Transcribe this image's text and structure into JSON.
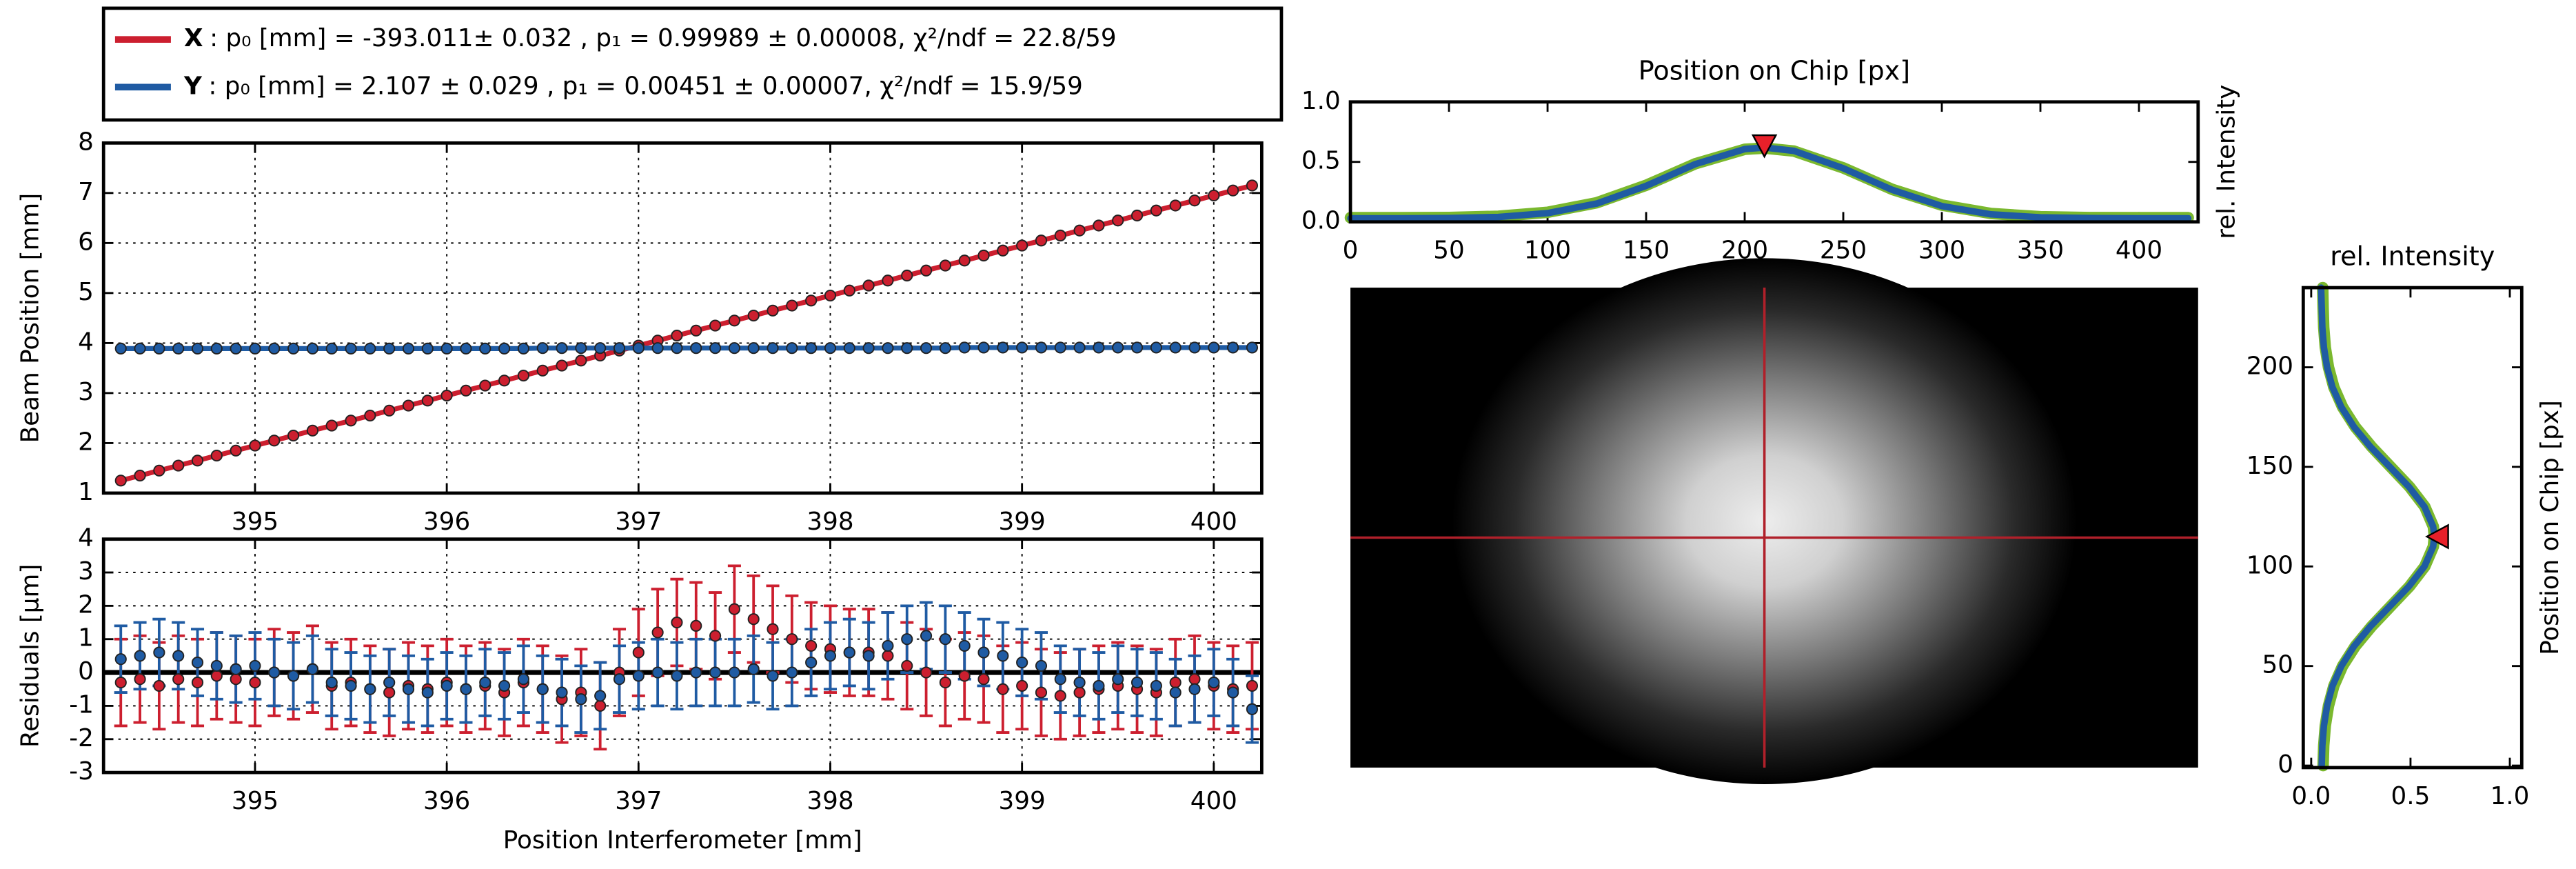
{
  "chart_data": [
    {
      "type": "line",
      "ylabel": "Beam Position [mm]",
      "x": [
        394.3,
        394.4,
        394.5,
        394.6,
        394.7,
        394.8,
        394.9,
        395.0,
        395.1,
        395.2,
        395.3,
        395.4,
        395.5,
        395.6,
        395.7,
        395.8,
        395.9,
        396.0,
        396.1,
        396.2,
        396.3,
        396.4,
        396.5,
        396.6,
        396.7,
        396.8,
        396.9,
        397.0,
        397.1,
        397.2,
        397.3,
        397.4,
        397.5,
        397.6,
        397.7,
        397.8,
        397.9,
        398.0,
        398.1,
        398.2,
        398.3,
        398.4,
        398.5,
        398.6,
        398.7,
        398.8,
        398.9,
        399.0,
        399.1,
        399.2,
        399.3,
        399.4,
        399.5,
        399.6,
        399.7,
        399.8,
        399.9,
        400.0,
        400.1,
        400.2
      ],
      "series": [
        {
          "name": "X",
          "label": ": p₀ [mm] = -393.011± 0.032 , p₁ = 0.99989 ± 0.00008, χ²/ndf = 22.8/59",
          "color": "#cc1f2f",
          "values": [
            1.25,
            1.35,
            1.45,
            1.55,
            1.65,
            1.75,
            1.85,
            1.95,
            2.05,
            2.15,
            2.25,
            2.35,
            2.45,
            2.55,
            2.65,
            2.75,
            2.85,
            2.95,
            3.05,
            3.15,
            3.25,
            3.35,
            3.45,
            3.55,
            3.65,
            3.75,
            3.85,
            3.95,
            4.05,
            4.15,
            4.25,
            4.35,
            4.45,
            4.55,
            4.65,
            4.75,
            4.85,
            4.95,
            5.05,
            5.15,
            5.25,
            5.35,
            5.45,
            5.55,
            5.65,
            5.75,
            5.85,
            5.95,
            6.05,
            6.15,
            6.25,
            6.35,
            6.45,
            6.55,
            6.65,
            6.75,
            6.85,
            6.95,
            7.05,
            7.15
          ]
        },
        {
          "name": "Y",
          "label": ": p₀ [mm] = 2.107 ± 0.029 , p₁ = 0.00451 ± 0.00007, χ²/ndf = 15.9/59",
          "color": "#1f5ba3",
          "values": [
            3.89,
            3.89,
            3.89,
            3.89,
            3.89,
            3.89,
            3.89,
            3.89,
            3.89,
            3.89,
            3.89,
            3.89,
            3.89,
            3.89,
            3.89,
            3.89,
            3.89,
            3.89,
            3.89,
            3.89,
            3.89,
            3.89,
            3.9,
            3.9,
            3.9,
            3.9,
            3.9,
            3.9,
            3.9,
            3.9,
            3.9,
            3.9,
            3.9,
            3.9,
            3.9,
            3.9,
            3.9,
            3.9,
            3.9,
            3.9,
            3.9,
            3.9,
            3.9,
            3.9,
            3.91,
            3.91,
            3.91,
            3.91,
            3.91,
            3.91,
            3.91,
            3.91,
            3.91,
            3.91,
            3.91,
            3.91,
            3.91,
            3.91,
            3.91,
            3.91
          ]
        }
      ],
      "xlim": [
        394.21,
        400.25
      ],
      "xticks": [
        395,
        396,
        397,
        398,
        399,
        400
      ],
      "ylim": [
        1,
        8
      ],
      "yticks": [
        1,
        2,
        3,
        4,
        5,
        6,
        7,
        8
      ],
      "grid": true
    },
    {
      "type": "errorbar",
      "xlabel": "Position Interferometer [mm]",
      "ylabel": "Residuals [µm]",
      "x": [
        394.3,
        394.4,
        394.5,
        394.6,
        394.7,
        394.8,
        394.9,
        395.0,
        395.1,
        395.2,
        395.3,
        395.4,
        395.5,
        395.6,
        395.7,
        395.8,
        395.9,
        396.0,
        396.1,
        396.2,
        396.3,
        396.4,
        396.5,
        396.6,
        396.7,
        396.8,
        396.9,
        397.0,
        397.1,
        397.2,
        397.3,
        397.4,
        397.5,
        397.6,
        397.7,
        397.8,
        397.9,
        398.0,
        398.1,
        398.2,
        398.3,
        398.4,
        398.5,
        398.6,
        398.7,
        398.8,
        398.9,
        399.0,
        399.1,
        399.2,
        399.3,
        399.4,
        399.5,
        399.6,
        399.7,
        399.8,
        399.9,
        400.0,
        400.1,
        400.2
      ],
      "series": [
        {
          "color": "#cc1f2f",
          "error": 1.3,
          "values": [
            -0.3,
            -0.2,
            -0.4,
            -0.2,
            -0.3,
            -0.1,
            -0.2,
            -0.3,
            0.0,
            -0.1,
            0.1,
            -0.4,
            -0.3,
            -0.5,
            -0.6,
            -0.4,
            -0.5,
            -0.3,
            -0.5,
            -0.4,
            -0.6,
            -0.3,
            -0.5,
            -0.8,
            -0.6,
            -1.0,
            0.0,
            0.6,
            1.2,
            1.5,
            1.4,
            1.1,
            1.9,
            1.6,
            1.3,
            1.0,
            0.8,
            0.7,
            0.6,
            0.6,
            0.5,
            0.2,
            0.0,
            -0.3,
            -0.1,
            -0.2,
            -0.5,
            -0.4,
            -0.6,
            -0.7,
            -0.6,
            -0.5,
            -0.4,
            -0.5,
            -0.6,
            -0.3,
            -0.2,
            -0.4,
            -0.5,
            -0.4
          ]
        },
        {
          "color": "#1f5ba3",
          "error": 1.0,
          "values": [
            0.4,
            0.5,
            0.6,
            0.5,
            0.3,
            0.2,
            0.1,
            0.2,
            0.0,
            -0.1,
            0.1,
            -0.3,
            -0.4,
            -0.5,
            -0.3,
            -0.5,
            -0.6,
            -0.4,
            -0.5,
            -0.3,
            -0.4,
            -0.2,
            -0.5,
            -0.6,
            -0.8,
            -0.7,
            -0.2,
            -0.1,
            0.0,
            -0.1,
            0.0,
            0.0,
            0.0,
            0.1,
            -0.1,
            0.0,
            0.3,
            0.5,
            0.6,
            0.5,
            0.8,
            1.0,
            1.1,
            1.0,
            0.8,
            0.6,
            0.5,
            0.3,
            0.2,
            -0.2,
            -0.3,
            -0.4,
            -0.2,
            -0.3,
            -0.4,
            -0.6,
            -0.5,
            -0.3,
            -0.6,
            -1.1
          ]
        }
      ],
      "xlim": [
        394.21,
        400.25
      ],
      "xticks": [
        395,
        396,
        397,
        398,
        399,
        400
      ],
      "ylim": [
        -3,
        4
      ],
      "yticks": [
        -3,
        -2,
        -1,
        0,
        1,
        2,
        3,
        4
      ],
      "grid": true
    },
    {
      "type": "line",
      "title": "Position on Chip [px]",
      "ylabel": "rel. Intensity",
      "ylabel_side": "right",
      "x": [
        0,
        25,
        50,
        75,
        100,
        125,
        150,
        175,
        200,
        210,
        225,
        250,
        275,
        300,
        325,
        350,
        375,
        400,
        425
      ],
      "series": [
        {
          "color": "#7ab82e",
          "values": [
            0.035,
            0.035,
            0.037,
            0.047,
            0.08,
            0.16,
            0.305,
            0.485,
            0.605,
            0.615,
            0.59,
            0.45,
            0.27,
            0.14,
            0.07,
            0.043,
            0.036,
            0.035,
            0.035
          ]
        },
        {
          "color": "#1f5ba3",
          "values": [
            0.03,
            0.03,
            0.032,
            0.041,
            0.073,
            0.153,
            0.3,
            0.482,
            0.607,
            0.62,
            0.592,
            0.447,
            0.266,
            0.132,
            0.063,
            0.038,
            0.032,
            0.03,
            0.03
          ]
        }
      ],
      "peak": {
        "x": 210,
        "y": 0.64,
        "color": "#e8202a"
      },
      "xlim": [
        0,
        430
      ],
      "xticks": [
        0,
        50,
        100,
        150,
        200,
        250,
        300,
        350,
        400
      ],
      "ylim": [
        0,
        1
      ],
      "yticks": [
        {
          "value": 0,
          "label": "0.0"
        },
        0.5,
        {
          "value": 1,
          "label": "1.0"
        }
      ],
      "grid": false
    },
    {
      "type": "line",
      "orientation": "horizontal",
      "title": "rel. Intensity",
      "ylabel": "Position on Chip [px]",
      "ylabel_side": "right",
      "y": [
        0,
        10,
        20,
        30,
        40,
        50,
        60,
        70,
        80,
        90,
        100,
        110,
        115,
        120,
        130,
        140,
        150,
        160,
        170,
        180,
        190,
        200,
        210,
        220,
        230,
        240
      ],
      "series": [
        {
          "color": "#7ab82e",
          "values": [
            0.06,
            0.063,
            0.071,
            0.087,
            0.114,
            0.158,
            0.222,
            0.305,
            0.4,
            0.495,
            0.572,
            0.615,
            0.62,
            0.615,
            0.572,
            0.495,
            0.4,
            0.305,
            0.222,
            0.158,
            0.114,
            0.087,
            0.071,
            0.063,
            0.06,
            0.058
          ]
        },
        {
          "color": "#1f5ba3",
          "values": [
            0.053,
            0.056,
            0.064,
            0.08,
            0.107,
            0.152,
            0.216,
            0.299,
            0.396,
            0.492,
            0.57,
            0.614,
            0.62,
            0.614,
            0.57,
            0.492,
            0.396,
            0.299,
            0.216,
            0.152,
            0.107,
            0.08,
            0.064,
            0.056,
            0.053,
            0.05
          ]
        }
      ],
      "peak": {
        "x": 0.64,
        "y": 115,
        "color": "#e8202a"
      },
      "xlim": [
        -0.04,
        1.06
      ],
      "xticks": [
        {
          "value": 0,
          "label": "0.0"
        },
        0.5,
        {
          "value": 1,
          "label": "1.0"
        }
      ],
      "ylim": [
        -1,
        240
      ],
      "yticks": [
        0,
        50,
        100,
        150,
        200
      ],
      "grid": false
    },
    {
      "type": "image",
      "xlim": [
        0,
        430
      ],
      "ylim": [
        0,
        240
      ],
      "crosshair": {
        "x": 210,
        "y": 115,
        "color": "#b0202a"
      }
    }
  ]
}
